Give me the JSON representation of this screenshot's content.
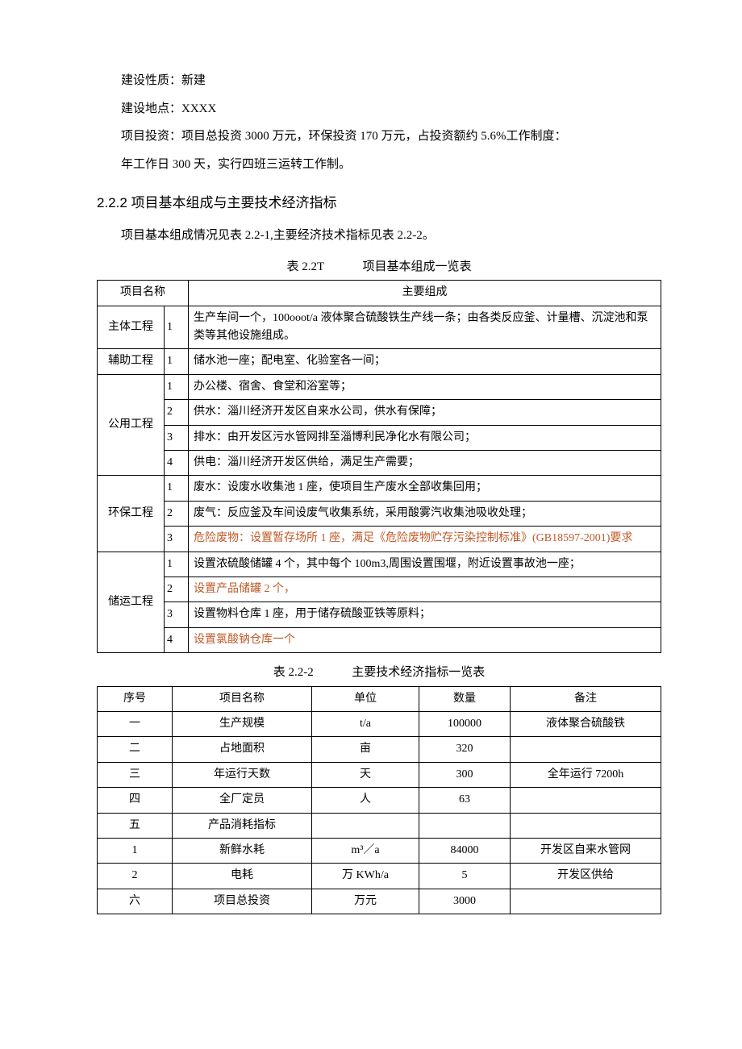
{
  "paragraphs": {
    "p1": "建设性质：新建",
    "p2": "建设地点：XXXX",
    "p3": "项目投资：项目总投资 3000 万元，环保投资 170 万元，占投资额约 5.6%工作制度：",
    "p4": "年工作日 300 天，实行四班三运转工作制。"
  },
  "section_heading": "2.2.2 项目基本组成与主要技术经济指标",
  "section_intro": "项目基本组成情况见表 2.2-1,主要经济技术指标见表 2.2-2。",
  "table1": {
    "caption_left": "表 2.2T",
    "caption_right": "项目基本组成一览表",
    "head_c1": "项目名称",
    "head_c3": "主要组成",
    "groups": [
      {
        "name": "主体工程",
        "rows": [
          {
            "idx": "1",
            "text": "生产车间一个，100ooot/a 液体聚合硫酸铁生产线一条；由各类反应釜、计量槽、沉淀池和泵类等其他设施组成。",
            "hl": false
          }
        ]
      },
      {
        "name": "辅助工程",
        "rows": [
          {
            "idx": "1",
            "text": "储水池一座；配电室、化验室各一间；",
            "hl": false
          }
        ]
      },
      {
        "name": "公用工程",
        "rows": [
          {
            "idx": "1",
            "text": "办公楼、宿舍、食堂和浴室等；",
            "hl": false
          },
          {
            "idx": "2",
            "text": "供水：淄川经济开发区自来水公司，供水有保障；",
            "hl": false
          },
          {
            "idx": "3",
            "text": "排水：由开发区污水管网排至淄博利民净化水有限公司；",
            "hl": false
          },
          {
            "idx": "4",
            "text": "供电：淄川经济开发区供给，满足生产需要；",
            "hl": false
          }
        ]
      },
      {
        "name": "环保工程",
        "rows": [
          {
            "idx": "1",
            "text": "废水：设废水收集池 1 座，使项目生产废水全部收集回用；",
            "hl": false
          },
          {
            "idx": "2",
            "text": "废气：反应釜及车间设废气收集系统，采用酸雾汽收集池吸收处理；",
            "hl": false
          },
          {
            "idx": "3",
            "text": "危险废物：设置暂存场所 1 座，满足《危险废物贮存污染控制标准》(GB18597-2001)要求",
            "hl": true
          }
        ]
      },
      {
        "name": "储运工程",
        "rows": [
          {
            "idx": "1",
            "text": "设置浓硫酸储罐 4 个，其中每个 100m3,周围设置围堰，附近设置事故池一座；",
            "hl": false
          },
          {
            "idx": "2",
            "text": "设置产品储罐 2 个，",
            "hl": true
          },
          {
            "idx": "3",
            "text": "设置物料仓库 1 座，用于储存硫酸亚铁等原料；",
            "hl": false
          },
          {
            "idx": "4",
            "text": "设置氯酸钠仓库一个",
            "hl": true
          }
        ]
      }
    ]
  },
  "table2": {
    "caption_left": "表 2.2-2",
    "caption_right": "主要技术经济指标一览表",
    "head": {
      "c1": "序号",
      "c2": "项目名称",
      "c3": "单位",
      "c4": "数量",
      "c5": "备注"
    },
    "rows": [
      {
        "c1": "一",
        "c2": "生产规模",
        "c3": "t/a",
        "c4": "100000",
        "c5": "液体聚合硫酸铁"
      },
      {
        "c1": "二",
        "c2": "占地面积",
        "c3": "亩",
        "c4": "320",
        "c5": ""
      },
      {
        "c1": "三",
        "c2": "年运行天数",
        "c3": "天",
        "c4": "300",
        "c5": "全年运行 7200h"
      },
      {
        "c1": "四",
        "c2": "全厂定员",
        "c3": "人",
        "c4": "63",
        "c5": ""
      },
      {
        "c1": "五",
        "c2": "产品消耗指标",
        "c3": "",
        "c4": "",
        "c5": ""
      },
      {
        "c1": "1",
        "c2": "新鲜水耗",
        "c3": "m³／a",
        "c4": "84000",
        "c5": "开发区自来水管网"
      },
      {
        "c1": "2",
        "c2": "电耗",
        "c3": "万 KWh/a",
        "c4": "5",
        "c5": "开发区供给"
      },
      {
        "c1": "六",
        "c2": "项目总投资",
        "c3": "万元",
        "c4": "3000",
        "c5": ""
      }
    ]
  }
}
